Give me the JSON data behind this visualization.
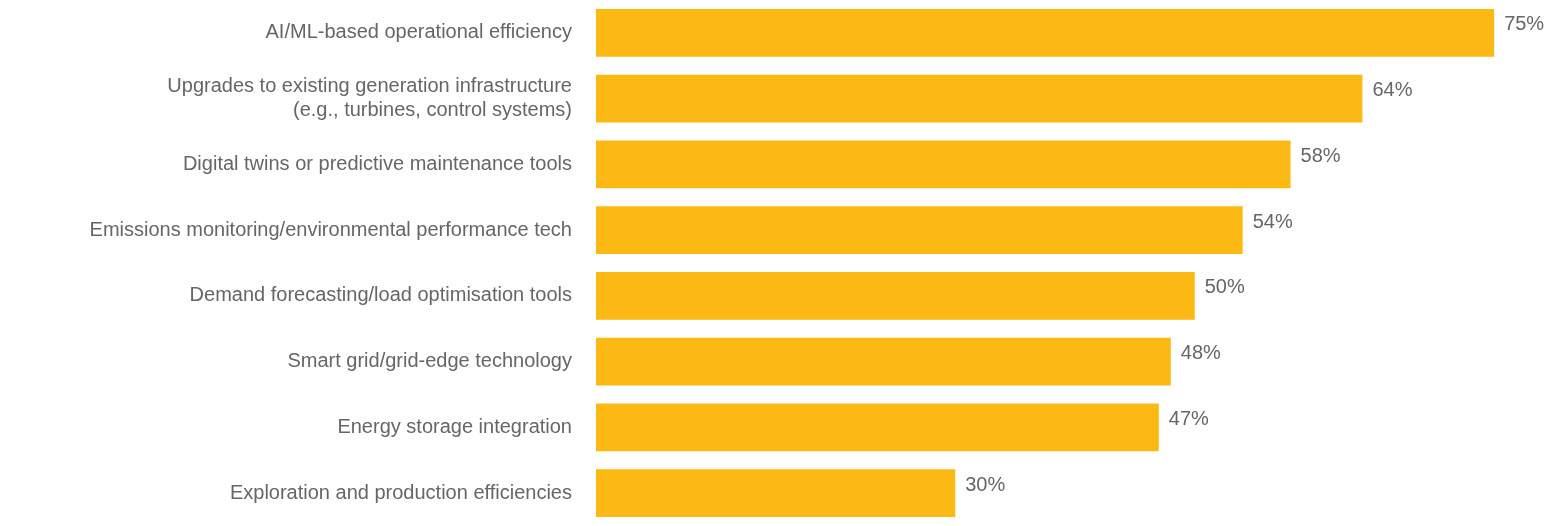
{
  "chart_data": {
    "type": "bar",
    "orientation": "horizontal",
    "tick_labels": "y",
    "grid": false,
    "legend": false,
    "categories": [
      "AI/ML-based operational efficiency",
      "Upgrades to existing generation infrastructure\n(e.g., turbines, control systems)",
      "Digital twins or predictive maintenance tools",
      "Emissions monitoring/environmental performance tech",
      "Demand forecasting/load optimisation tools",
      "Smart grid/grid-edge technology",
      "Energy storage integration",
      "Exploration and production efficiencies"
    ],
    "values": [
      75,
      64,
      58,
      54,
      50,
      48,
      47,
      30
    ],
    "value_labels": [
      "75%",
      "64%",
      "58%",
      "54%",
      "50%",
      "48%",
      "47%",
      "30%"
    ],
    "color": "#fdb913"
  }
}
